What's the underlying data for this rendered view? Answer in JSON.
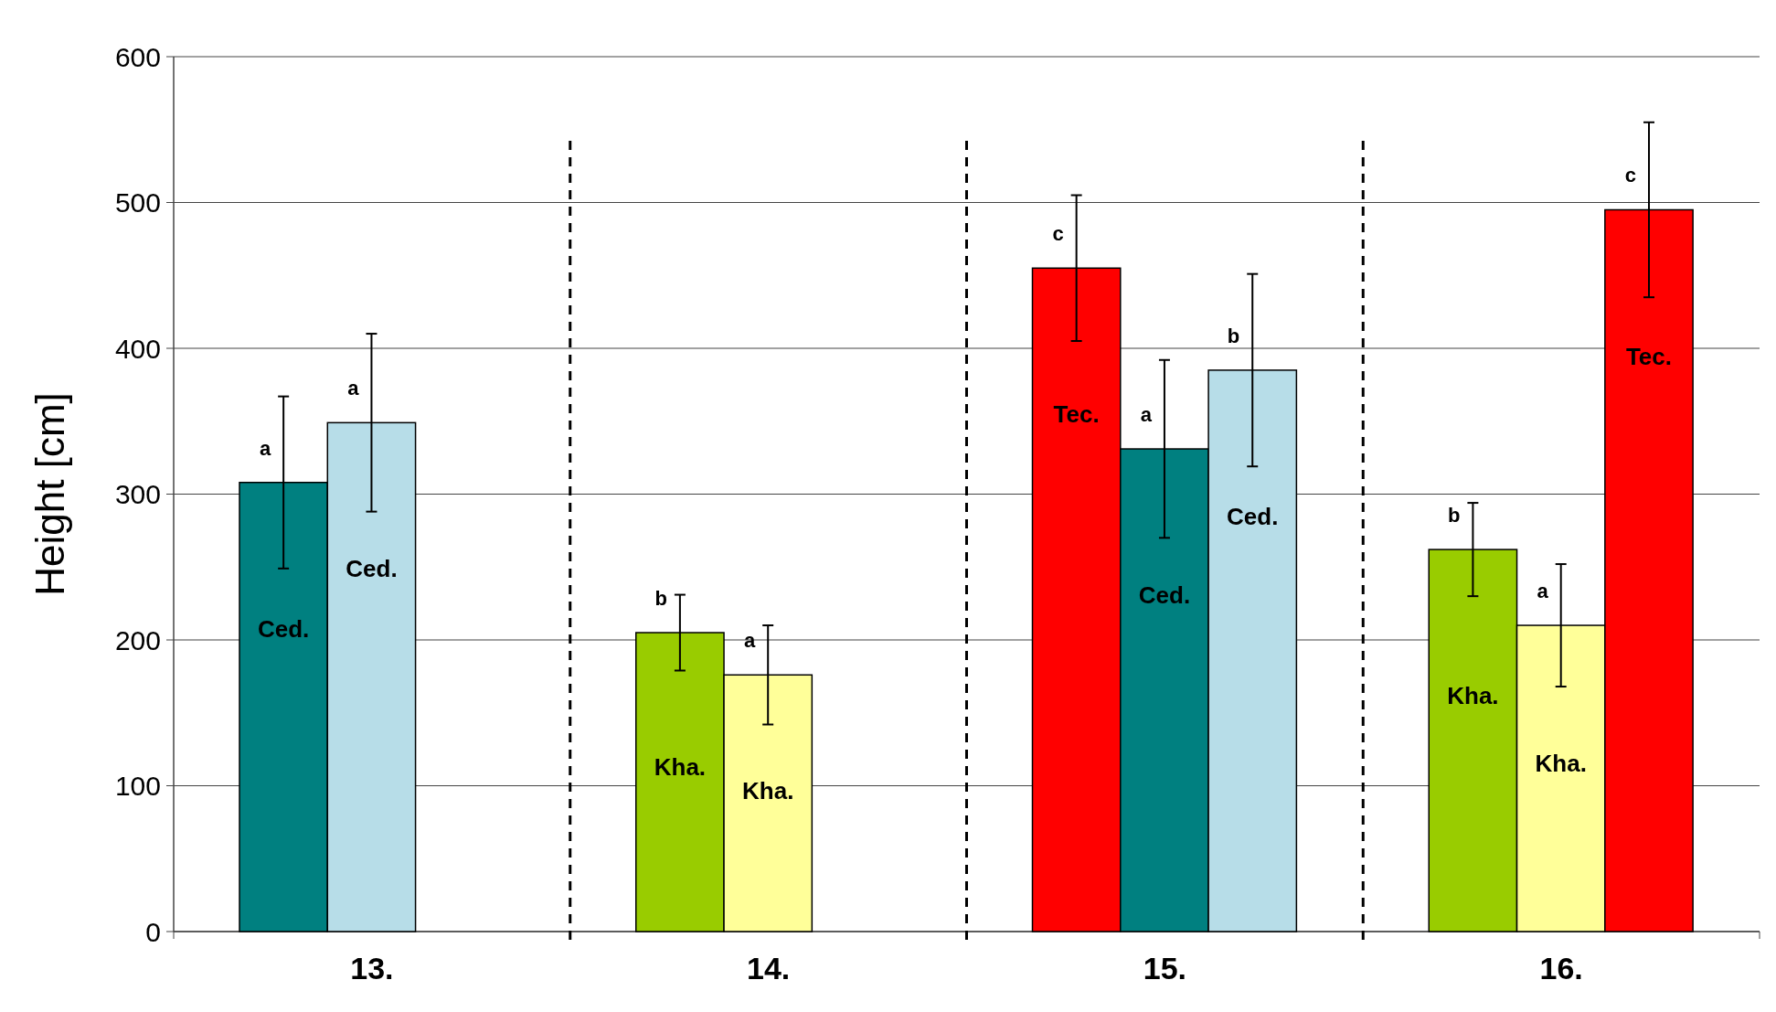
{
  "chart_data": {
    "type": "bar",
    "ylabel": "Height [cm]",
    "categories": [
      "13.",
      "14.",
      "15.",
      "16."
    ],
    "series": [
      {
        "colors": [
          "#008080",
          "#99cc00",
          "#ff0000",
          "#99cc00"
        ],
        "values": [
          308,
          205,
          455,
          262
        ],
        "errors": [
          59,
          26,
          50,
          32
        ]
      },
      {
        "colors": [
          "#b7dde8",
          "#ffff99",
          "#008080",
          "#ffff99"
        ],
        "values": [
          349,
          176,
          331,
          210
        ],
        "errors": [
          61,
          34,
          61,
          42
        ]
      },
      {
        "colors": [
          null,
          null,
          "#b7dde8",
          "#ff0000"
        ],
        "values": [
          null,
          null,
          385,
          495
        ],
        "errors": [
          null,
          null,
          66,
          60
        ]
      }
    ],
    "ylim": [
      0,
      600
    ],
    "yticks": [
      0,
      100,
      200,
      300,
      400,
      500,
      600
    ],
    "grid": "y",
    "annotations": [
      "a",
      "a",
      "b",
      "a",
      "c",
      "a",
      "b",
      "b",
      "a",
      "c",
      "Ced.",
      "Ced.",
      "Kha.",
      "Kha.",
      "Tec.",
      "Ced.",
      "Ced.",
      "Kha.",
      "Kha.",
      "Tec."
    ]
  }
}
